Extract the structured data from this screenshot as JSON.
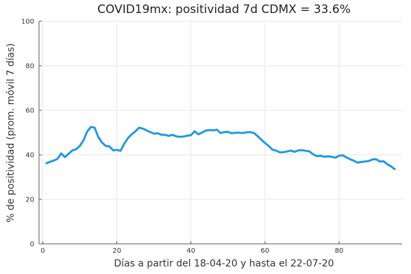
{
  "chart_data": {
    "type": "line",
    "title": "COVID19mx: positividad 7d CDMX = 33.6%",
    "xlabel": "Días a partir del 18-04-20 y hasta el 22-07-20",
    "ylabel": "% de positividad (prom. móvil 7 días)",
    "xlim": [
      -1,
      97
    ],
    "ylim": [
      0,
      100
    ],
    "xticks": [
      0,
      20,
      40,
      60,
      80
    ],
    "yticks": [
      0,
      20,
      40,
      60,
      80,
      100
    ],
    "grid": true,
    "series": [
      {
        "color": "#1f98e8",
        "x": [
          1,
          2,
          3,
          4,
          5,
          6,
          7,
          8,
          9,
          10,
          11,
          12,
          13,
          14,
          15,
          16,
          17,
          18,
          19,
          20,
          21,
          22,
          23,
          24,
          25,
          26,
          27,
          28,
          29,
          30,
          31,
          32,
          33,
          34,
          35,
          36,
          37,
          38,
          39,
          40,
          41,
          42,
          43,
          44,
          45,
          46,
          47,
          48,
          49,
          50,
          51,
          52,
          53,
          54,
          55,
          56,
          57,
          58,
          59,
          60,
          61,
          62,
          63,
          64,
          65,
          66,
          67,
          68,
          69,
          70,
          71,
          72,
          73,
          74,
          75,
          76,
          77,
          78,
          79,
          80,
          81,
          82,
          83,
          84,
          85,
          86,
          87,
          88,
          89,
          90,
          91,
          92,
          93,
          94,
          95
        ],
        "y": [
          36.2,
          36.9,
          37.4,
          38.2,
          40.6,
          39.0,
          40.5,
          42.0,
          42.5,
          44.0,
          46.5,
          50.5,
          52.5,
          52.2,
          48.0,
          45.5,
          44.0,
          43.8,
          42.0,
          42.2,
          41.8,
          45.0,
          47.5,
          49.2,
          50.5,
          52.2,
          51.8,
          51.0,
          50.2,
          49.5,
          49.7,
          49.0,
          49.0,
          48.5,
          49.0,
          48.3,
          48.1,
          48.2,
          48.6,
          48.8,
          50.6,
          49.2,
          50.0,
          50.9,
          51.1,
          51.0,
          51.3,
          49.8,
          50.2,
          50.3,
          49.7,
          49.9,
          49.9,
          49.8,
          50.1,
          50.2,
          49.8,
          48.4,
          46.8,
          45.3,
          44.0,
          42.3,
          41.9,
          41.1,
          41.2,
          41.5,
          41.9,
          41.3,
          42.0,
          42.1,
          41.8,
          41.5,
          40.2,
          39.4,
          39.6,
          39.1,
          39.3,
          39.1,
          38.7,
          39.6,
          39.8,
          38.8,
          38.0,
          37.3,
          36.5,
          36.8,
          37.0,
          37.2,
          37.9,
          38.0,
          37.0,
          37.1,
          35.8,
          34.8,
          33.6
        ]
      }
    ]
  }
}
